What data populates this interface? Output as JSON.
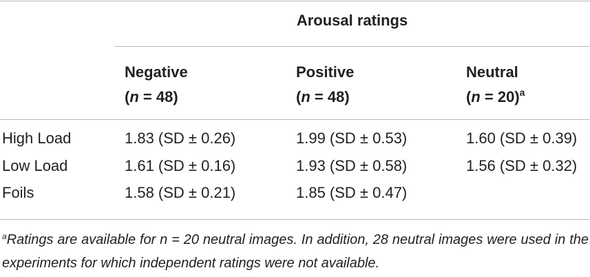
{
  "table": {
    "group_title": "Arousal ratings",
    "columns": [
      {
        "name": "Negative",
        "n_prefix": "(",
        "n_var": "n",
        "n_value": " = 48)",
        "note": ""
      },
      {
        "name": "Positive",
        "n_prefix": "(",
        "n_var": "n",
        "n_value": " = 48)",
        "note": ""
      },
      {
        "name": "Neutral",
        "n_prefix": "(",
        "n_var": "n",
        "n_value": " = 20)",
        "note": "a"
      }
    ],
    "rows": [
      {
        "label": "High Load",
        "cells": [
          "1.83 (SD ± 0.26)",
          "1.99 (SD ± 0.53)",
          "1.60 (SD ± 0.39)"
        ]
      },
      {
        "label": "Low Load",
        "cells": [
          "1.61 (SD ± 0.16)",
          "1.93 (SD ± 0.58)",
          "1.56 (SD ± 0.32)"
        ]
      },
      {
        "label": "Foils",
        "cells": [
          "1.58 (SD ± 0.21)",
          "1.85 (SD ± 0.47)",
          ""
        ]
      }
    ],
    "footnote": {
      "marker": "a",
      "text": "Ratings are available for n = 20 neutral images. In addition, 28 neutral images were used in the experiments for which independent ratings were not available."
    }
  }
}
